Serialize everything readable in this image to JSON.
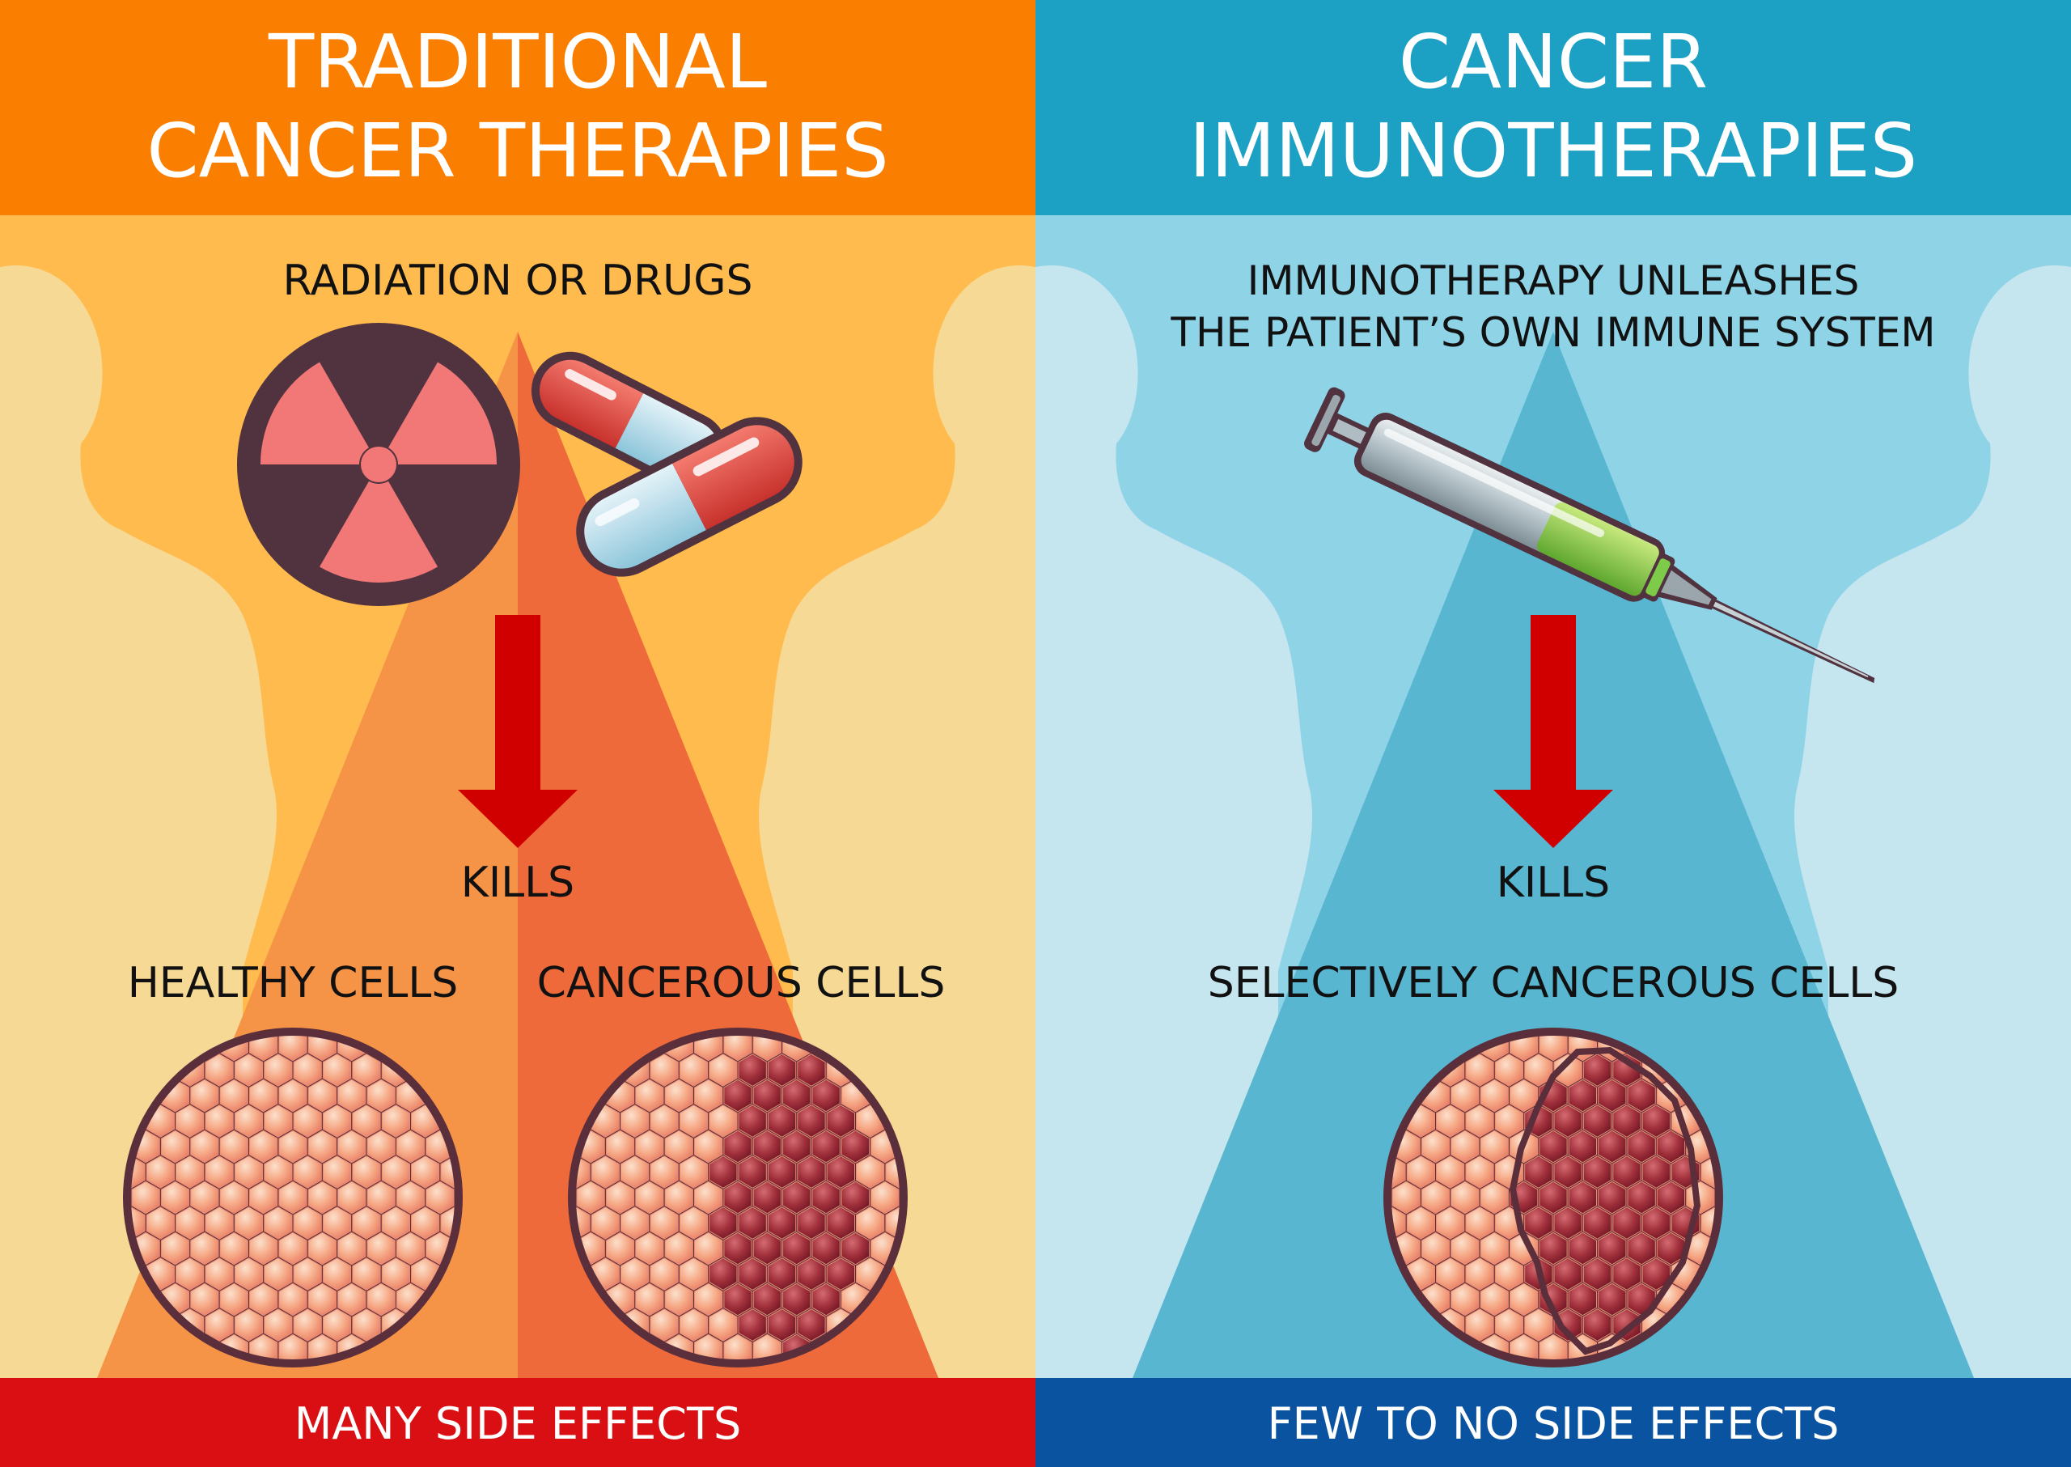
{
  "colors": {
    "left_header": "#FA7F00",
    "left_bg": "#FFBB4D",
    "left_silhouette": "#F6D995",
    "left_tri_a": "#F59347",
    "left_tri_b": "#EF6A3B",
    "left_footer": "#D90F13",
    "right_header": "#1CA0C3",
    "right_bg": "#8FD3E7",
    "right_silhouette": "#C5E5EF",
    "right_tri": "#58B6D0",
    "right_footer": "#0A53A0",
    "arrow": "#D00000",
    "cell_ring": "#5A2E3B",
    "healthy_cell": "#F6A986",
    "cancer_cell": "#9A2734",
    "radiation_dark": "#51323F",
    "radiation_pink": "#F17876"
  },
  "icons": {
    "radiation": "radiation-icon",
    "pills": "capsule-pills-icon",
    "syringe": "syringe-icon",
    "arrow": "arrow-down-icon",
    "silhouette": "human-silhouette-icon",
    "cells": "cell-tissue-icon"
  },
  "left": {
    "title_line1": "TRADITIONAL",
    "title_line2": "CANCER THERAPIES",
    "subtitle": "RADIATION OR DRUGS",
    "kills": "KILLS",
    "healthy_label": "HEALTHY CELLS",
    "cancerous_label": "CANCEROUS CELLS",
    "footer": "MANY SIDE EFFECTS"
  },
  "right": {
    "title_line1": "CANCER",
    "title_line2": "IMMUNOTHERAPIES",
    "subtitle_line1": "IMMUNOTHERAPY UNLEASHES",
    "subtitle_line2": "THE PATIENT’S OWN IMMUNE SYSTEM",
    "kills": "KILLS",
    "selective_label": "SELECTIVELY CANCEROUS CELLS",
    "footer": "FEW TO NO SIDE EFFECTS"
  }
}
